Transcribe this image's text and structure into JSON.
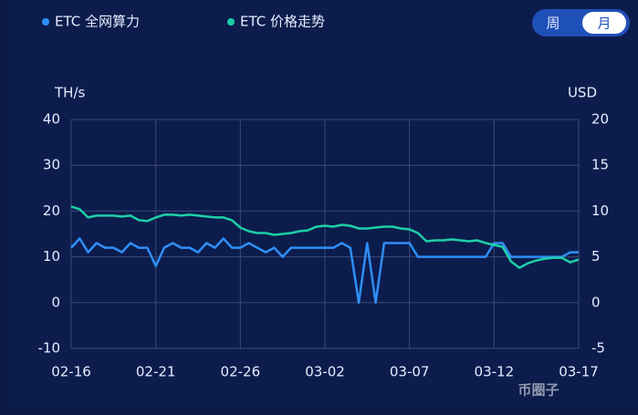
{
  "chart_data": {
    "type": "line",
    "categories": [
      "02-16",
      null,
      null,
      null,
      null,
      null,
      null,
      null,
      null,
      null,
      "02-21",
      null,
      null,
      null,
      null,
      null,
      null,
      null,
      null,
      null,
      "02-26",
      null,
      null,
      null,
      null,
      null,
      null,
      null,
      null,
      null,
      "03-02",
      null,
      null,
      null,
      null,
      null,
      null,
      null,
      null,
      null,
      "03-07",
      null,
      null,
      null,
      null,
      null,
      null,
      null,
      null,
      null,
      "03-12",
      null,
      null,
      null,
      null,
      null,
      null,
      null,
      null,
      null,
      "03-17"
    ],
    "series": [
      {
        "name": "ETC 全网算力",
        "color": "#2f8ef7",
        "values": [
          12,
          14,
          11,
          13,
          12,
          12,
          11,
          13,
          12,
          12,
          8,
          12,
          13,
          12,
          12,
          11,
          13,
          12,
          14,
          12,
          12,
          13,
          12,
          11,
          12,
          10,
          12,
          12,
          12,
          12,
          12,
          12,
          13,
          12,
          0,
          13,
          0,
          13,
          13,
          13,
          13,
          10,
          10,
          10,
          10,
          10,
          10,
          10,
          10,
          10,
          13,
          13,
          10,
          10,
          10,
          10,
          10,
          10,
          10,
          11,
          11
        ]
      },
      {
        "name": "ETC 价格走势",
        "color": "#1ecfa8",
        "axis": "y2",
        "values": [
          10.5,
          10.2,
          9.3,
          9.5,
          9.5,
          9.5,
          9.4,
          9.5,
          9.0,
          8.9,
          9.3,
          9.6,
          9.6,
          9.5,
          9.6,
          9.5,
          9.4,
          9.3,
          9.3,
          9.0,
          8.2,
          7.8,
          7.6,
          7.6,
          7.4,
          7.5,
          7.6,
          7.8,
          7.9,
          8.3,
          8.4,
          8.3,
          8.5,
          8.4,
          8.1,
          8.1,
          8.2,
          8.3,
          8.3,
          8.1,
          8.0,
          7.6,
          6.7,
          6.8,
          6.8,
          6.9,
          6.8,
          6.7,
          6.8,
          6.5,
          6.3,
          6.1,
          4.5,
          3.8,
          4.3,
          4.6,
          4.8,
          4.9,
          4.9,
          4.4,
          4.7
        ]
      }
    ],
    "y_unit": "TH/s",
    "y2_unit": "USD",
    "ylim": [
      -10,
      40
    ],
    "yticks": [
      -10,
      0,
      10,
      20,
      30,
      40
    ],
    "y2lim": [
      -5,
      20
    ],
    "y2ticks": [
      -5,
      0,
      5,
      10,
      15,
      20
    ],
    "grid": true
  },
  "controls": {
    "options": [
      "周",
      "月"
    ],
    "selected": 1
  },
  "watermark": "币圈子"
}
